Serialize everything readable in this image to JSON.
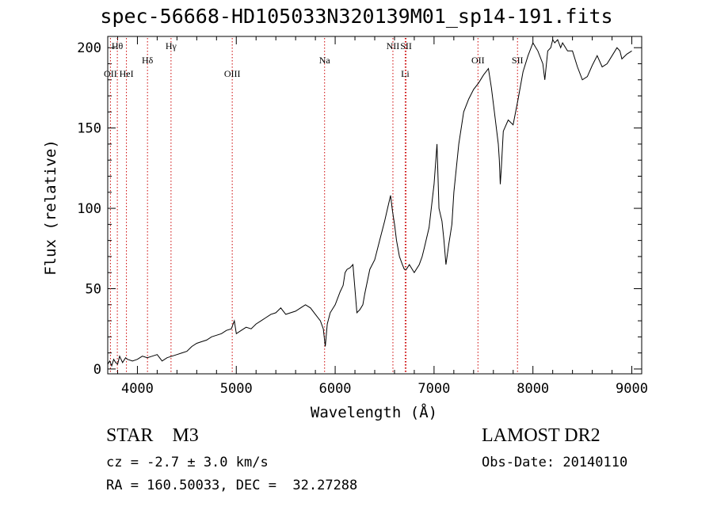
{
  "chart_data": {
    "type": "line",
    "title": "spec-56668-HD105033N320139M01_sp14-191.fits",
    "xlabel": "Wavelength (Å)",
    "ylabel": "Flux (relative)",
    "xlim": [
      3700,
      9100
    ],
    "ylim": [
      -3,
      207
    ],
    "xticks": [
      4000,
      5000,
      6000,
      7000,
      8000,
      9000
    ],
    "yticks": [
      0,
      50,
      100,
      150,
      200
    ],
    "grid": false,
    "line_color": "#000000",
    "marker_color": "#cc0000",
    "series": [
      {
        "x": [
          3700,
          3720,
          3740,
          3760,
          3780,
          3800,
          3820,
          3850,
          3880,
          3900,
          3950,
          4000,
          4050,
          4100,
          4150,
          4200,
          4250,
          4300,
          4350,
          4400,
          4450,
          4500,
          4550,
          4600,
          4650,
          4700,
          4750,
          4800,
          4850,
          4900,
          4950,
          4980,
          5000,
          5050,
          5100,
          5150,
          5200,
          5250,
          5300,
          5350,
          5400,
          5450,
          5500,
          5550,
          5600,
          5650,
          5700,
          5750,
          5800,
          5850,
          5880,
          5900,
          5920,
          5950,
          6000,
          6050,
          6080,
          6100,
          6120,
          6150,
          6180,
          6200,
          6220,
          6250,
          6280,
          6300,
          6350,
          6400,
          6450,
          6500,
          6530,
          6560,
          6580,
          6600,
          6620,
          6650,
          6680,
          6700,
          6720,
          6750,
          6800,
          6850,
          6880,
          6900,
          6950,
          7000,
          7030,
          7050,
          7080,
          7100,
          7120,
          7150,
          7180,
          7200,
          7250,
          7300,
          7350,
          7400,
          7450,
          7500,
          7550,
          7580,
          7600,
          7620,
          7650,
          7660,
          7670,
          7680,
          7700,
          7750,
          7800,
          7850,
          7900,
          7950,
          8000,
          8050,
          8100,
          8120,
          8150,
          8180,
          8200,
          8220,
          8250,
          8280,
          8300,
          8350,
          8400,
          8450,
          8500,
          8550,
          8600,
          8650,
          8700,
          8750,
          8800,
          8850,
          8880,
          8900,
          8950,
          9000
        ],
        "y": [
          3,
          5,
          2,
          6,
          4,
          3,
          8,
          4,
          7,
          6,
          5,
          6,
          8,
          7,
          8,
          9,
          5,
          7,
          8,
          9,
          10,
          11,
          14,
          16,
          17,
          18,
          20,
          21,
          22,
          24,
          25,
          30,
          22,
          24,
          26,
          25,
          28,
          30,
          32,
          34,
          35,
          38,
          34,
          35,
          36,
          38,
          40,
          38,
          34,
          30,
          25,
          14,
          28,
          35,
          40,
          48,
          52,
          60,
          62,
          63,
          65,
          50,
          35,
          37,
          40,
          47,
          62,
          68,
          80,
          92,
          100,
          108,
          98,
          90,
          80,
          70,
          65,
          62,
          62,
          65,
          60,
          65,
          70,
          75,
          88,
          115,
          140,
          100,
          92,
          80,
          65,
          78,
          90,
          110,
          140,
          160,
          168,
          174,
          178,
          183,
          187,
          175,
          165,
          155,
          140,
          130,
          115,
          125,
          148,
          155,
          152,
          168,
          185,
          195,
          203,
          198,
          190,
          180,
          198,
          200,
          205,
          203,
          205,
          200,
          203,
          198,
          198,
          188,
          180,
          182,
          189,
          195,
          188,
          190,
          195,
          200,
          198,
          193,
          196,
          198
        ]
      }
    ],
    "line_markers": [
      {
        "label": "Hθ",
        "x": 3797,
        "tier": 1
      },
      {
        "label": "OII",
        "x": 3727,
        "tier": 3
      },
      {
        "label": "HeI",
        "x": 3889,
        "tier": 3
      },
      {
        "label": "Hδ",
        "x": 4102,
        "tier": 2
      },
      {
        "label": "Hγ",
        "x": 4340,
        "tier": 1
      },
      {
        "label": "OIII",
        "x": 4959,
        "tier": 3
      },
      {
        "label": "Na",
        "x": 5893,
        "tier": 2
      },
      {
        "label": "NII",
        "x": 6584,
        "tier": 1
      },
      {
        "label": "SII",
        "x": 6717,
        "tier": 1
      },
      {
        "label": "Li",
        "x": 6708,
        "tier": 3
      },
      {
        "label": "OII",
        "x": 7444,
        "tier": 2
      },
      {
        "label": "SII",
        "x": 7844,
        "tier": 2
      }
    ]
  },
  "info": {
    "class": "STAR",
    "subclass": "M3",
    "survey": "LAMOST DR2",
    "cz": "cz = -2.7 ± 3.0 km/s",
    "obs_date": "Obs-Date: 20140110",
    "radec": "RA = 160.50033, DEC =  32.27288"
  }
}
